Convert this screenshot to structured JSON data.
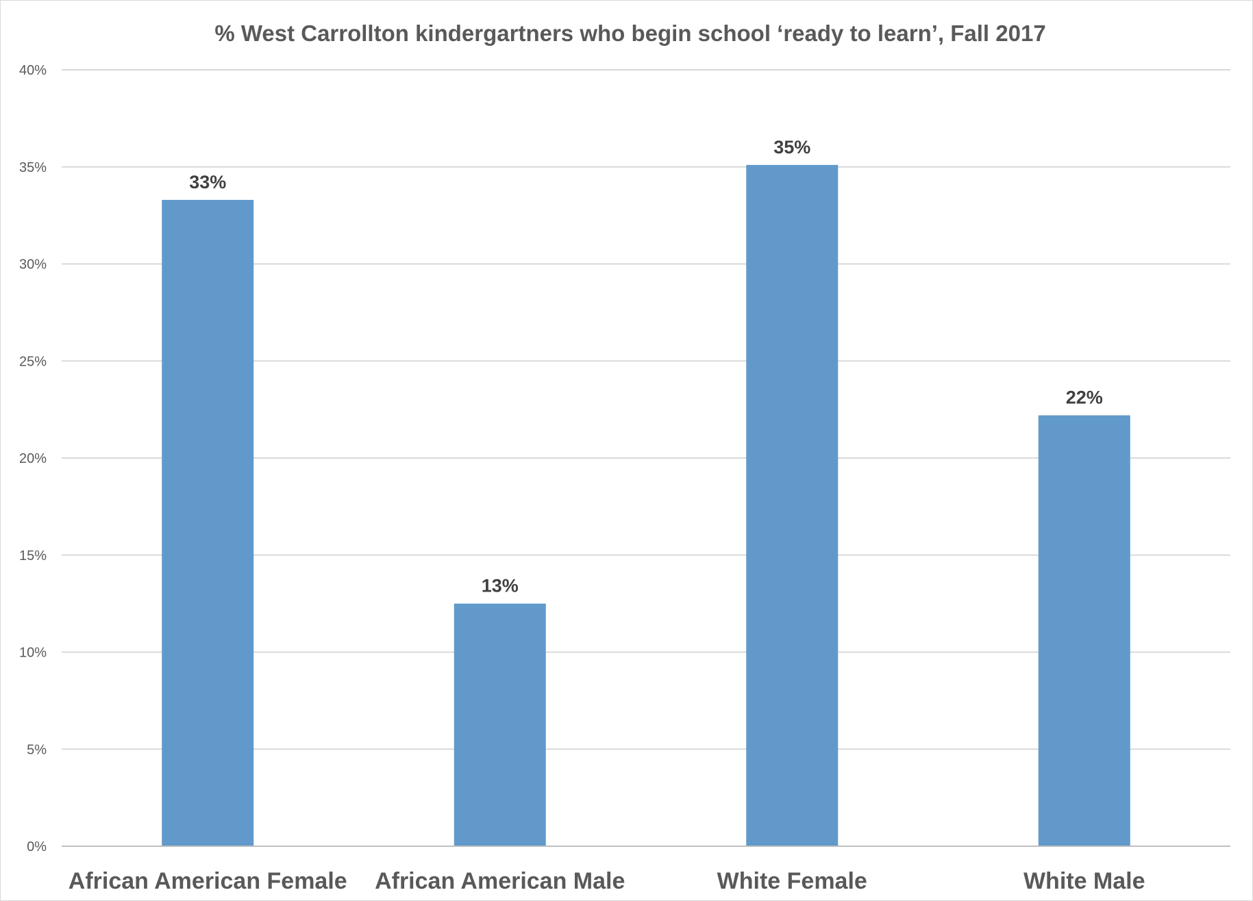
{
  "chart_data": {
    "type": "bar",
    "title": "% West Carrollton kindergartners who begin school ‘ready to learn’, Fall 2017",
    "xlabel": "",
    "ylabel": "",
    "categories": [
      "African American Female",
      "African American Male",
      "White Female",
      "White Male"
    ],
    "values": [
      0.333,
      0.125,
      0.351,
      0.222
    ],
    "data_labels": [
      "33%",
      "13%",
      "35%",
      "22%"
    ],
    "ylim": [
      0,
      0.4
    ],
    "yticks": [
      0,
      0.05,
      0.1,
      0.15,
      0.2,
      0.25,
      0.3,
      0.35,
      0.4
    ],
    "ytick_labels": [
      "0%",
      "5%",
      "10%",
      "15%",
      "20%",
      "25%",
      "30%",
      "35%",
      "40%"
    ],
    "grid": true,
    "legend": "none",
    "colors": {
      "bar": "#6199CB",
      "grid": "#D9D9D9",
      "axis": "#BFBFBF",
      "text": "#595959",
      "data_label": "#404040"
    }
  }
}
